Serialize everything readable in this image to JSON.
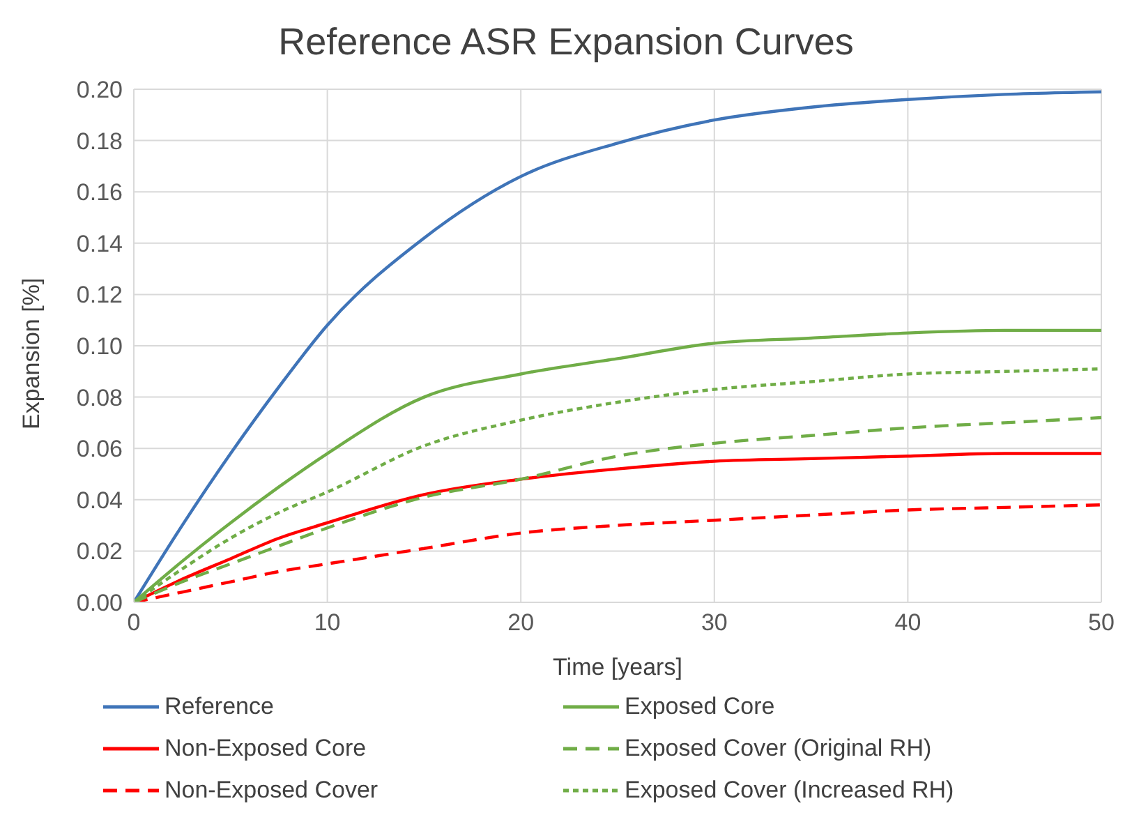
{
  "chart_data": {
    "type": "line",
    "title": "Reference ASR Expansion Curves",
    "xlabel": "Time [years]",
    "ylabel": "Expansion [%]",
    "x": [
      0,
      2.5,
      5,
      7.5,
      10,
      15,
      20,
      25,
      30,
      35,
      40,
      45,
      50
    ],
    "series": [
      {
        "name": "Reference",
        "color": "#3f74b8",
        "line_style": "solid",
        "values": [
          0,
          0.03,
          0.058,
          0.084,
          0.108,
          0.142,
          0.166,
          0.179,
          0.188,
          0.193,
          0.196,
          0.198,
          0.199
        ]
      },
      {
        "name": "Non-Exposed Core",
        "color": "#ff0000",
        "line_style": "solid",
        "values": [
          0,
          0.009,
          0.017,
          0.025,
          0.031,
          0.042,
          0.048,
          0.052,
          0.055,
          0.056,
          0.057,
          0.058,
          0.058
        ]
      },
      {
        "name": "Non-Exposed Cover",
        "color": "#ff0000",
        "line_style": "dashed",
        "values": [
          0,
          0.004,
          0.008,
          0.012,
          0.015,
          0.021,
          0.027,
          0.03,
          0.032,
          0.034,
          0.036,
          0.037,
          0.038
        ]
      },
      {
        "name": "Exposed Core",
        "color": "#70ad47",
        "line_style": "solid",
        "values": [
          0,
          0.016,
          0.031,
          0.045,
          0.058,
          0.08,
          0.089,
          0.095,
          0.101,
          0.103,
          0.105,
          0.106,
          0.106
        ]
      },
      {
        "name": "Exposed Cover (Original RH)",
        "color": "#70ad47",
        "line_style": "dashed",
        "values": [
          0,
          0.008,
          0.015,
          0.022,
          0.029,
          0.041,
          0.048,
          0.057,
          0.062,
          0.065,
          0.068,
          0.07,
          0.072
        ]
      },
      {
        "name": "Exposed Cover (Increased RH)",
        "color": "#70ad47",
        "line_style": "dotted",
        "values": [
          0,
          0.013,
          0.025,
          0.035,
          0.043,
          0.061,
          0.071,
          0.078,
          0.083,
          0.086,
          0.089,
          0.09,
          0.091
        ]
      }
    ],
    "xlim": [
      0,
      50
    ],
    "xticks": [
      0,
      10,
      20,
      30,
      40,
      50
    ],
    "ylim": [
      0,
      0.2
    ],
    "yticks": [
      {
        "value": 0,
        "label": "0.00"
      },
      {
        "value": 0.02,
        "label": "0.02"
      },
      {
        "value": 0.04,
        "label": "0.04"
      },
      {
        "value": 0.06,
        "label": "0.06"
      },
      {
        "value": 0.08,
        "label": "0.08"
      },
      {
        "value": 0.1,
        "label": "0.10"
      },
      {
        "value": 0.12,
        "label": "0.12"
      },
      {
        "value": 0.14,
        "label": "0.14"
      },
      {
        "value": 0.16,
        "label": "0.16"
      },
      {
        "value": 0.18,
        "label": "0.18"
      },
      {
        "value": 0.2,
        "label": "0.20"
      }
    ],
    "grid": true,
    "legend": "bottom",
    "marker": "none"
  }
}
